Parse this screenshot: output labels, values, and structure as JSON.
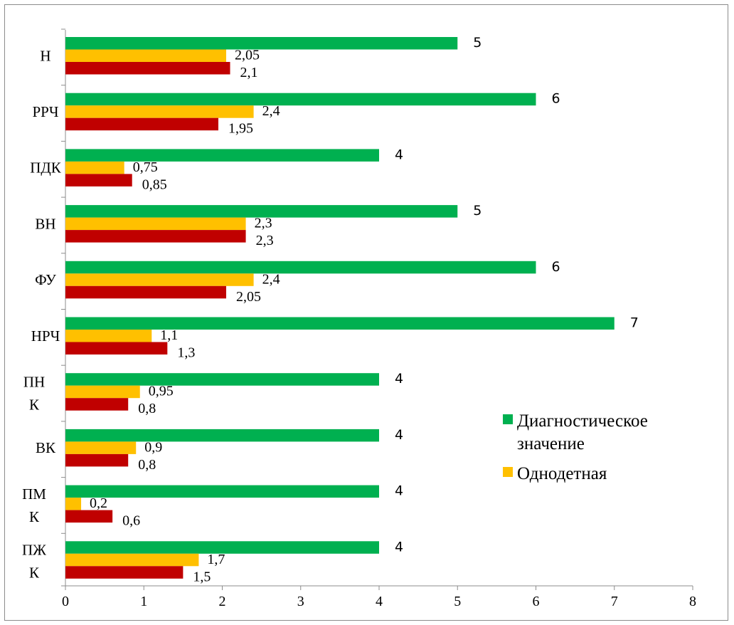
{
  "chart_data": {
    "type": "bar",
    "orientation": "horizontal",
    "categories": [
      "Н",
      "РРЧ",
      "ПДК",
      "ВН",
      "ФУ",
      "НРЧ",
      "ПНК",
      "ВК",
      "ПМК",
      "ПЖК"
    ],
    "category_label_lines": [
      [
        "Н"
      ],
      [
        "РРЧ"
      ],
      [
        "ПДК"
      ],
      [
        "ВН"
      ],
      [
        "ФУ"
      ],
      [
        "НРЧ"
      ],
      [
        "ПН",
        "К"
      ],
      [
        "ВК"
      ],
      [
        "ПМ",
        "К"
      ],
      [
        "ПЖ",
        "К"
      ]
    ],
    "series": [
      {
        "name": "Диагностическое значение",
        "color": "#00b050",
        "values": [
          5,
          6,
          4,
          5,
          6,
          7,
          4,
          4,
          4,
          4
        ],
        "labels": [
          "5",
          "6",
          "4",
          "5",
          "6",
          "7",
          "4",
          "4",
          "4",
          "4"
        ]
      },
      {
        "name": "Однодетная",
        "color": "#ffc000",
        "values": [
          2.05,
          2.4,
          0.75,
          2.3,
          2.4,
          1.1,
          0.95,
          0.9,
          0.2,
          1.7
        ],
        "labels": [
          "2,05",
          "2,4",
          "0,75",
          "2,3",
          "2,4",
          "1,1",
          "0,95",
          "0,9",
          "0,2",
          "1,7"
        ]
      },
      {
        "name": "",
        "color": "#c00000",
        "values": [
          2.1,
          1.95,
          0.85,
          2.3,
          2.05,
          1.3,
          0.8,
          0.8,
          0.6,
          1.5
        ],
        "labels": [
          "2,1",
          "1,95",
          "0,85",
          "2,3",
          "2,05",
          "1,3",
          "0,8",
          "0,8",
          "0,6",
          "1,5"
        ]
      }
    ],
    "xlim": [
      0,
      8
    ],
    "x_ticks": [
      "0",
      "1",
      "2",
      "3",
      "4",
      "5",
      "6",
      "7",
      "8"
    ],
    "legend": {
      "placement": "right",
      "entries": [
        {
          "lines": [
            "Диагностическое",
            "значение"
          ],
          "color": "#00b050"
        },
        {
          "lines": [
            "Однодетная"
          ],
          "color": "#ffc000"
        }
      ]
    },
    "grid": false
  }
}
